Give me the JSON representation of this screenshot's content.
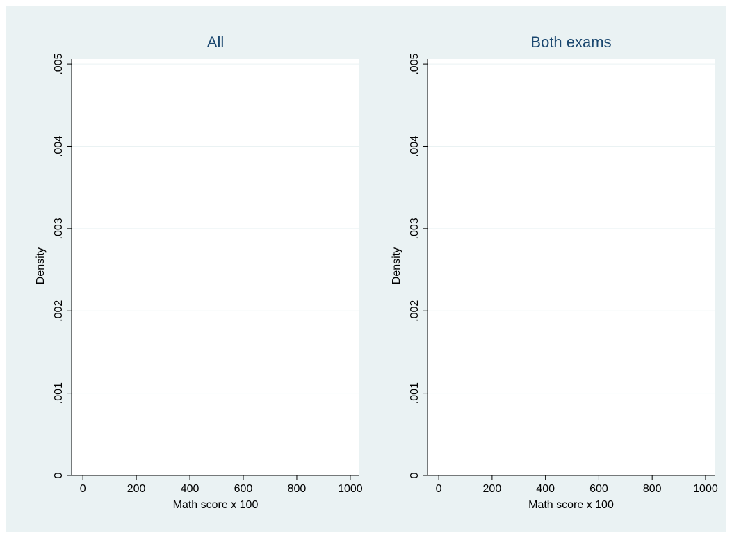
{
  "chart_data": [
    {
      "type": "histogram",
      "title": "All",
      "xlabel": "Math score x 100",
      "ylabel": "Density",
      "xlim": [
        -42,
        1034
      ],
      "xticks": [
        0,
        200,
        400,
        600,
        800,
        1000
      ],
      "ylim": [
        0,
        0.00506
      ],
      "yticks": [
        0,
        {
          "value": 0.001,
          "label": ".001"
        },
        {
          "value": 0.002,
          "label": ".002"
        },
        {
          "value": 0.003,
          "label": ".003"
        },
        {
          "value": 0.004,
          "label": ".004"
        },
        {
          "value": 0.005,
          "label": ".005"
        }
      ],
      "grid": true
    },
    {
      "type": "histogram",
      "title": "Both exams",
      "xlabel": "Math score x 100",
      "ylabel": "Density",
      "xlim": [
        -42,
        1034
      ],
      "xticks": [
        0,
        200,
        400,
        600,
        800,
        1000
      ],
      "ylim": [
        0,
        0.00506
      ],
      "yticks": [
        0,
        {
          "value": 0.001,
          "label": ".001"
        },
        {
          "value": 0.002,
          "label": ".002"
        },
        {
          "value": 0.003,
          "label": ".003"
        },
        {
          "value": 0.004,
          "label": ".004"
        },
        {
          "value": 0.005,
          "label": ".005"
        }
      ],
      "grid": true
    }
  ]
}
